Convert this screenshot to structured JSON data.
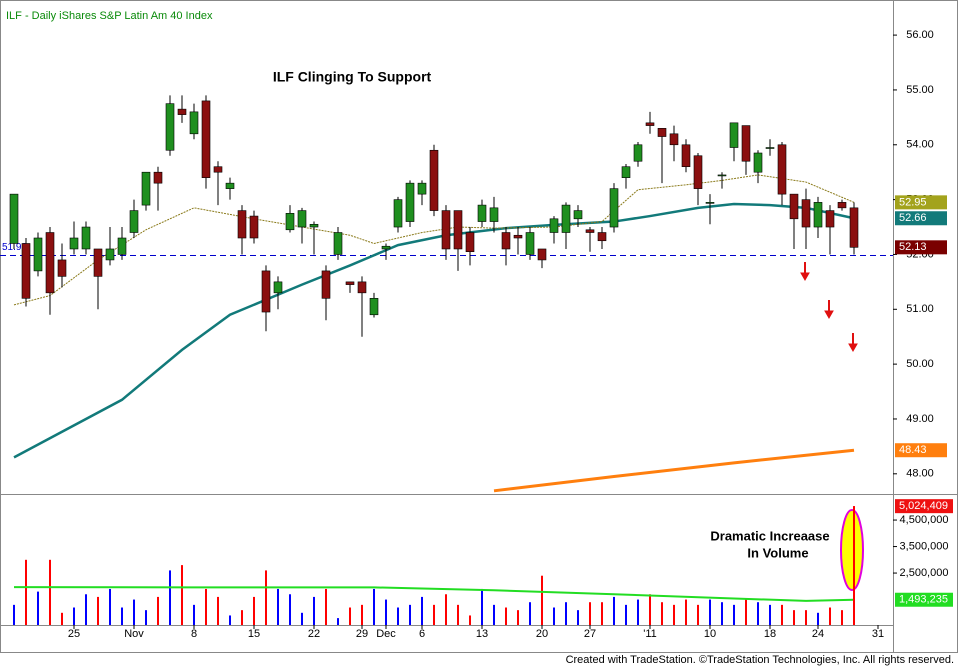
{
  "chart_data": {
    "type": "candlestick",
    "title": "ILF - Daily  iShares S&P Latin Am 40 Index",
    "annotation": "ILF Clinging To Support",
    "volume_annotation": [
      "Dramatic Increaase",
      "In Volume"
    ],
    "footer": "Created with TradeStation. ©TradeStation Technologies, Inc. All rights reserved.",
    "categories": [
      null,
      null,
      null,
      null,
      null,
      "25",
      null,
      null,
      null,
      null,
      "Nov",
      null,
      null,
      null,
      null,
      "8",
      null,
      null,
      null,
      null,
      "15",
      null,
      null,
      null,
      null,
      "22",
      null,
      null,
      null,
      "29",
      null,
      "Dec",
      null,
      null,
      "6",
      null,
      null,
      null,
      null,
      "13",
      null,
      null,
      null,
      null,
      "20",
      null,
      null,
      null,
      "27",
      null,
      null,
      null,
      null,
      "'11",
      null,
      null,
      null,
      null,
      "10",
      null,
      null,
      null,
      null,
      "18",
      null,
      null,
      null,
      "24",
      null,
      null,
      null,
      null,
      "31"
    ],
    "open": [
      52.2,
      52.2,
      51.7,
      52.4,
      51.9,
      52.1,
      52.1,
      52.1,
      51.9,
      52.0,
      52.4,
      52.9,
      53.5,
      53.9,
      54.65,
      54.2,
      54.8,
      53.6,
      53.2,
      52.8,
      52.7,
      51.7,
      51.3,
      52.45,
      52.5,
      52.5,
      51.7,
      52.0,
      51.5,
      51.5,
      50.9,
      52.1,
      52.5,
      52.6,
      53.1,
      53.9,
      52.8,
      52.8,
      52.4,
      52.6,
      52.6,
      52.4,
      52.35,
      52.0,
      52.1,
      52.4,
      52.4,
      52.65,
      52.45,
      52.4,
      52.5,
      53.4,
      53.7,
      54.4,
      54.3,
      54.2,
      54.0,
      53.8,
      52.95,
      53.45,
      53.95,
      54.35,
      53.5,
      53.95,
      54.0,
      53.1,
      53.0,
      52.5,
      52.8,
      52.95,
      52.85,
      null,
      null
    ],
    "high": [
      53.1,
      52.3,
      52.4,
      52.5,
      52.2,
      52.6,
      52.6,
      52.1,
      52.5,
      52.5,
      53.0,
      53.5,
      53.6,
      54.9,
      54.9,
      54.75,
      54.9,
      53.7,
      53.4,
      52.9,
      52.8,
      51.8,
      51.6,
      52.9,
      52.85,
      52.6,
      51.8,
      52.5,
      51.5,
      51.6,
      51.3,
      52.2,
      53.05,
      53.35,
      53.35,
      54.0,
      52.9,
      52.8,
      52.5,
      53.0,
      53.05,
      52.5,
      52.5,
      52.5,
      52.1,
      52.7,
      52.95,
      52.9,
      52.5,
      52.5,
      53.3,
      53.65,
      54.05,
      54.6,
      54.3,
      54.35,
      54.1,
      53.85,
      53.1,
      53.5,
      54.4,
      54.35,
      53.9,
      54.1,
      54.05,
      53.1,
      53.2,
      53.05,
      52.9,
      53.0,
      52.95,
      null,
      null
    ],
    "low": [
      52.1,
      51.05,
      51.6,
      50.9,
      51.4,
      52.0,
      52.0,
      51.0,
      51.8,
      51.9,
      52.3,
      52.8,
      52.8,
      53.8,
      54.4,
      54.1,
      53.2,
      52.9,
      53.0,
      52.0,
      52.2,
      50.6,
      51.0,
      52.4,
      52.2,
      52.0,
      50.8,
      51.9,
      51.3,
      50.5,
      50.85,
      51.9,
      52.4,
      52.5,
      52.9,
      52.7,
      51.9,
      51.7,
      51.8,
      52.5,
      52.4,
      51.8,
      52.0,
      51.9,
      51.75,
      52.2,
      52.1,
      52.5,
      52.05,
      52.1,
      52.4,
      53.2,
      53.6,
      54.2,
      53.3,
      53.7,
      53.5,
      52.9,
      52.55,
      53.2,
      53.7,
      53.45,
      53.3,
      53.8,
      52.9,
      52.1,
      52.1,
      52.3,
      52.0,
      52.8,
      52.0,
      null,
      null
    ],
    "close": [
      53.1,
      51.2,
      52.3,
      51.3,
      51.6,
      52.3,
      52.5,
      51.6,
      52.1,
      52.3,
      52.8,
      53.5,
      53.3,
      54.75,
      54.55,
      54.6,
      53.4,
      53.5,
      53.3,
      52.3,
      52.3,
      50.95,
      51.5,
      52.75,
      52.8,
      52.55,
      51.2,
      52.4,
      51.45,
      51.3,
      51.2,
      52.15,
      53.0,
      53.3,
      53.3,
      52.8,
      52.1,
      52.1,
      52.05,
      52.9,
      52.85,
      52.1,
      52.3,
      52.4,
      51.9,
      52.65,
      52.9,
      52.8,
      52.4,
      52.25,
      53.2,
      53.6,
      54.0,
      54.35,
      54.15,
      54.0,
      53.6,
      53.2,
      52.95,
      53.45,
      54.4,
      53.7,
      53.85,
      53.95,
      53.1,
      52.65,
      52.5,
      52.95,
      52.5,
      52.85,
      52.13,
      null,
      null
    ],
    "up_color": "#1f8f1f",
    "down_color": "#8b1010",
    "volume": [
      1300000,
      3000000,
      1800000,
      3000000,
      1000000,
      1200000,
      1700000,
      1600000,
      1900000,
      1200000,
      1500000,
      1100000,
      1600000,
      2600000,
      2800000,
      1300000,
      1900000,
      1600000,
      900000,
      1100000,
      1600000,
      2600000,
      1900000,
      1700000,
      1000000,
      1600000,
      1900000,
      800000,
      1200000,
      1300000,
      1900000,
      1500000,
      1200000,
      1300000,
      1600000,
      1300000,
      1700000,
      1300000,
      900000,
      1900000,
      1300000,
      1200000,
      1100000,
      1400000,
      2400000,
      1200000,
      1400000,
      1100000,
      1400000,
      1400000,
      1600000,
      1300000,
      1500000,
      1700000,
      1400000,
      1300000,
      1500000,
      1300000,
      1500000,
      1400000,
      1300000,
      1500000,
      1400000,
      1300000,
      1300000,
      1100000,
      1100000,
      1000000,
      1200000,
      1100000,
      5024409,
      null,
      null
    ],
    "volume_up_color": "#0000ff",
    "volume_down_color": "#ff0000",
    "ylim": [
      47.65,
      56.64
    ],
    "yticks": [
      {
        "value": 48,
        "label": "48.00"
      },
      {
        "value": 49,
        "label": "49.00"
      },
      {
        "value": 50,
        "label": "50.00"
      },
      {
        "value": 51,
        "label": "51.00"
      },
      {
        "value": 52,
        "label": "52.00"
      },
      {
        "value": 53,
        "label": "53.00"
      },
      {
        "value": 54,
        "label": "54.00"
      },
      {
        "value": 55,
        "label": "55.00"
      },
      {
        "value": 56,
        "label": "56.00"
      }
    ],
    "y2lim": [
      540000,
      5370000
    ],
    "y2ticks": [
      {
        "value": 2500000,
        "label": "2,500,000"
      },
      {
        "value": 3500000,
        "label": "3,500,000"
      },
      {
        "value": 4500000,
        "label": "4,500,000"
      }
    ],
    "moving_averages": [
      {
        "color": "#127a7a",
        "dash": "none",
        "width": 2.5,
        "x": [
          0,
          9,
          14,
          18,
          24,
          28,
          32,
          36,
          41,
          45,
          50,
          53,
          57,
          60,
          63,
          66,
          70
        ],
        "values": [
          48.3,
          49.35,
          50.26,
          50.9,
          51.45,
          51.8,
          52.17,
          52.35,
          52.48,
          52.54,
          52.6,
          52.7,
          52.85,
          52.92,
          52.9,
          52.85,
          52.66
        ]
      },
      {
        "color": "#8a7a1a",
        "dash": "2,1",
        "width": 1,
        "x": [
          0,
          3,
          7,
          11,
          15,
          20,
          24,
          28,
          30,
          34,
          37,
          40,
          45,
          49,
          52,
          56,
          59,
          62,
          66,
          70
        ],
        "values": [
          51.08,
          51.25,
          51.9,
          52.45,
          52.85,
          52.65,
          52.5,
          52.35,
          52.2,
          52.4,
          52.5,
          52.48,
          52.5,
          52.6,
          53.18,
          53.27,
          53.35,
          53.45,
          53.32,
          52.95
        ]
      },
      {
        "color": "#ff7f0e",
        "dash": "none",
        "width": 3,
        "x": [
          40,
          50,
          60,
          70
        ],
        "values": [
          47.69,
          47.95,
          48.2,
          48.43
        ]
      }
    ],
    "volume_average": {
      "color": "#22dd22",
      "x": [
        0,
        15,
        30,
        40,
        50,
        60,
        66,
        70
      ],
      "values": [
        1970000,
        1960000,
        1960000,
        1850000,
        1700000,
        1540000,
        1450000,
        1493235
      ]
    },
    "support": {
      "value": 51.98,
      "color": "#0000cc"
    },
    "price_tags": [
      {
        "value": 52.95,
        "color": "#a3a31c"
      },
      {
        "value": 52.66,
        "color": "#127a7a"
      },
      {
        "value": 52.13,
        "color": "#7a0000"
      },
      {
        "value": 48.43,
        "color": "#ff7f0e"
      }
    ],
    "volume_tags": [
      {
        "value": 5024409,
        "label": "5,024,409",
        "color": "#ee1111"
      },
      {
        "value": 1493235,
        "label": "1,493,235",
        "color": "#22dd22"
      }
    ]
  }
}
